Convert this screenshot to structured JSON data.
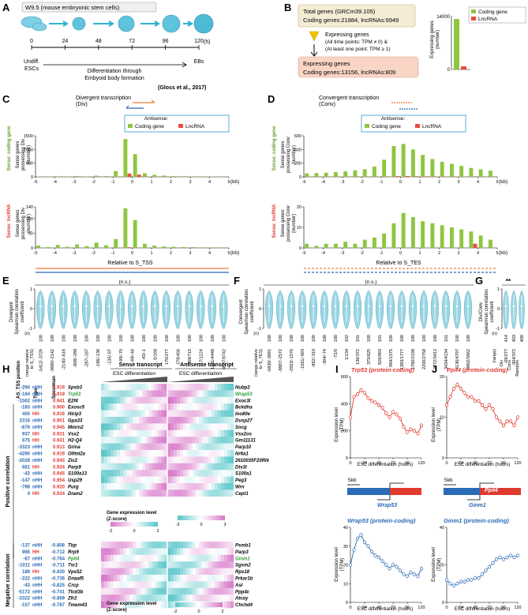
{
  "panel_letters": [
    "A",
    "B",
    "C",
    "D",
    "E",
    "F",
    "G",
    "H",
    "I",
    "J"
  ],
  "A": {
    "title": "W9.5 (mouse embryonic stem cells)",
    "ticks": [
      "0",
      "24",
      "48",
      "72",
      "96",
      "120"
    ],
    "unit": "(h)",
    "start_label": [
      "Undiff.",
      "ESCs"
    ],
    "mid_label": [
      "Differentiation through",
      "Embyoid body formation"
    ],
    "end_label": "EBs",
    "citation": "(Gloss et al., 2017)"
  },
  "B": {
    "total": [
      "Total genes (GRCm39.105)",
      "Coding genes:21884, lncRNAs:9949"
    ],
    "criteria": [
      "Expressing genes",
      "(All time points: TPM ≠ 0) &",
      "(At least one point: TPM ≥ 1)"
    ],
    "expressing": [
      "Expressing genes",
      "Coding genes:13156, lncRNAs:809"
    ],
    "ylabel": [
      "Expressing genes",
      "(number)"
    ],
    "yticks": [
      "14000",
      "0"
    ],
    "legend": [
      "Coding gene",
      "LncRNA"
    ],
    "colors": {
      "coding": "#8dc63f",
      "lnc": "#e84c3d"
    }
  },
  "chart_data": [
    {
      "panel": "B",
      "type": "bar",
      "categories": [
        "Coding gene",
        "LncRNA"
      ],
      "values": [
        13156,
        809
      ],
      "ylabel": "Expressing genes (number)",
      "ylim": [
        0,
        14000
      ]
    },
    {
      "panel": "C-top",
      "type": "bar",
      "title": "Divergent transcription (Div)",
      "ylabel": "Sense genes possessing Div (number)",
      "xlabel": "(kb)",
      "ylim": [
        0,
        1500
      ],
      "x": [
        -4.75,
        -4.25,
        -3.75,
        -3.25,
        -2.75,
        -2.25,
        -1.75,
        -1.25,
        -0.75,
        -0.25,
        0.25,
        0.75,
        1.25,
        1.75,
        2.25,
        2.75,
        3.25,
        3.75,
        4.25,
        4.75
      ],
      "series": [
        {
          "name": "Coding gene",
          "values": [
            14,
            8,
            20,
            12,
            28,
            16,
            42,
            28,
            210,
            1380,
            830,
            130,
            75,
            45,
            30,
            22,
            18,
            12,
            10,
            8
          ]
        },
        {
          "name": "LncRNA",
          "values": [
            2,
            1,
            2,
            1,
            3,
            2,
            3,
            2,
            8,
            120,
            80,
            6,
            4,
            3,
            2,
            2,
            1,
            1,
            1,
            1
          ]
        }
      ]
    },
    {
      "panel": "C-bottom",
      "type": "bar",
      "ylabel": "Sense genes possessing Div (number)",
      "xlabel": "Relative to S_TSS",
      "ylim": [
        0,
        140
      ],
      "x": [
        -4.75,
        -4.25,
        -3.75,
        -3.25,
        -2.75,
        -2.25,
        -1.75,
        -1.25,
        -0.75,
        -0.25,
        0.25,
        0.75,
        1.25,
        1.75,
        2.25,
        2.75,
        3.25,
        3.75,
        4.25,
        4.75
      ],
      "series": [
        {
          "name": "Coding gene",
          "values": [
            8,
            3,
            10,
            4,
            12,
            6,
            18,
            9,
            30,
            135,
            95,
            14,
            8,
            5,
            4,
            3,
            3,
            2,
            2,
            2
          ]
        },
        {
          "name": "LncRNA",
          "values": [
            0,
            0,
            0,
            0,
            0,
            0,
            0,
            0,
            1,
            2,
            0,
            0,
            0,
            0,
            0,
            0,
            0,
            0,
            0,
            0
          ]
        }
      ]
    },
    {
      "panel": "D-top",
      "type": "bar",
      "title": "Convergent transcription (Conv)",
      "ylabel": "Sense genes possessing Conv (number)",
      "xlabel": "(kb)",
      "ylim": [
        0,
        600
      ],
      "x": [
        -4.75,
        -4.25,
        -3.75,
        -3.25,
        -2.75,
        -2.25,
        -1.75,
        -1.25,
        -0.75,
        -0.25,
        0.25,
        0.75,
        1.25,
        1.75,
        2.25,
        2.75,
        3.25,
        3.75,
        4.25,
        4.75
      ],
      "series": [
        {
          "name": "Coding gene",
          "values": [
            50,
            55,
            60,
            70,
            80,
            95,
            110,
            150,
            250,
            450,
            480,
            400,
            320,
            260,
            220,
            190,
            160,
            130,
            110,
            90
          ]
        },
        {
          "name": "LncRNA",
          "values": [
            2,
            2,
            3,
            3,
            3,
            4,
            4,
            5,
            6,
            10,
            12,
            9,
            7,
            6,
            5,
            5,
            4,
            4,
            3,
            3
          ]
        }
      ]
    },
    {
      "panel": "D-bottom",
      "type": "bar",
      "ylabel": "Sense genes possessing Conv (number)",
      "xlabel": "Relative to S_TES",
      "ylim": [
        0,
        20
      ],
      "x": [
        -4.75,
        -4.25,
        -3.75,
        -3.25,
        -2.75,
        -2.25,
        -1.75,
        -1.25,
        -0.75,
        -0.25,
        0.25,
        0.75,
        1.25,
        1.75,
        2.25,
        2.75,
        3.25,
        3.75,
        4.25,
        4.75
      ],
      "series": [
        {
          "name": "Coding gene",
          "values": [
            2,
            1,
            2,
            2,
            3,
            2,
            4,
            5,
            7,
            12,
            17,
            15,
            13,
            12,
            11,
            10,
            9,
            8,
            6,
            4
          ]
        },
        {
          "name": "LncRNA",
          "values": [
            0,
            0,
            0,
            0,
            0,
            0,
            0,
            0,
            0,
            0,
            0,
            0,
            0,
            0,
            0,
            0,
            0,
            2,
            0,
            0
          ]
        }
      ]
    },
    {
      "panel": "I-top",
      "type": "line",
      "title": "Trp53 (protein-coding)",
      "ylabel": "Expression level (TPM)",
      "xlabel": "ESC differentiation (hours)",
      "ylim": [
        0,
        600
      ],
      "x": [
        0,
        6,
        12,
        18,
        24,
        30,
        36,
        42,
        48,
        54,
        60,
        66,
        72,
        78,
        84,
        90,
        96,
        102,
        108,
        114,
        120
      ],
      "values": [
        300,
        450,
        470,
        500,
        480,
        440,
        420,
        410,
        390,
        370,
        330,
        300,
        340,
        320,
        290,
        230,
        190,
        210,
        200,
        180,
        240
      ]
    },
    {
      "panel": "I-bottom",
      "type": "line",
      "title": "Wrap53 (protein-coding)",
      "ylabel": "Expression level (TPM)",
      "xlabel": "ESC differentiation (hours)",
      "ylim": [
        0,
        40
      ],
      "x": [
        0,
        6,
        12,
        18,
        24,
        30,
        36,
        42,
        48,
        54,
        60,
        66,
        72,
        78,
        84,
        90,
        96,
        102,
        108,
        114,
        120
      ],
      "values": [
        20,
        28,
        34,
        36,
        32,
        30,
        27,
        25,
        24,
        22,
        20,
        18,
        20,
        19,
        17,
        15,
        14,
        16,
        15,
        14,
        18
      ]
    },
    {
      "panel": "J-top",
      "type": "line",
      "title": "Ppil4 (protein-coding)",
      "ylabel": "Expression level (TPM)",
      "xlabel": "ESC differentiation (hours)",
      "ylim": [
        0,
        20
      ],
      "x": [
        0,
        6,
        12,
        18,
        24,
        30,
        36,
        42,
        48,
        54,
        60,
        66,
        72,
        78,
        84,
        90,
        96,
        102,
        108,
        114,
        120
      ],
      "values": [
        13,
        15,
        17,
        18,
        17,
        16,
        15,
        15,
        14,
        14,
        13,
        12,
        13,
        12,
        10,
        9,
        8,
        9,
        9,
        8,
        10
      ]
    },
    {
      "panel": "J-bottom",
      "type": "line",
      "title": "Ginm1 (protein-coding)",
      "ylabel": "Expression level (TPM)",
      "xlabel": "ESC differentiation (hours)",
      "ylim": [
        0,
        40
      ],
      "x": [
        0,
        6,
        12,
        18,
        24,
        30,
        36,
        42,
        48,
        54,
        60,
        66,
        72,
        78,
        84,
        90,
        96,
        102,
        108,
        114,
        120
      ],
      "values": [
        12,
        10,
        9,
        10,
        11,
        11,
        12,
        12,
        13,
        13,
        15,
        17,
        19,
        21,
        23,
        24,
        23,
        24,
        25,
        24,
        25
      ]
    }
  ],
  "C": {
    "title": [
      "Divergent transcription",
      "(Div)"
    ],
    "legend_title": "Antisense:",
    "legend": [
      "Coding gene",
      "LncRNA"
    ],
    "side_top": "Sense: coding gene",
    "side_bottom": "Sense: lncRNA",
    "ylabel_top": [
      "Sense genes",
      "possessing Div",
      "(number)"
    ],
    "ylabel_bottom": [
      "Sense genes",
      "possessing Div",
      "(number)"
    ],
    "yticks_top": [
      "1500",
      "1000",
      "500",
      "0"
    ],
    "yticks_bottom": [
      "140",
      "100",
      "50",
      "0"
    ],
    "xticks": [
      "-5",
      "-4",
      "-3",
      "-2",
      "-1",
      "0",
      "1",
      "2",
      "3",
      "4",
      "5"
    ],
    "unit": "(kb)",
    "xlabel": "Relative to S_TSS"
  },
  "D": {
    "title": [
      "Convergent transcription",
      "(Conv)"
    ],
    "legend_title": "Antisense:",
    "legend": [
      "Coding gene",
      "LncRNA"
    ],
    "side_top": "Sense: coding gene",
    "side_bottom": "Sense: lncRNA",
    "ylabel_top": [
      "Sense genes",
      "possessing Conv",
      "(number)"
    ],
    "ylabel_bottom": [
      "Sense genes",
      "possessing Conv",
      "(number)"
    ],
    "yticks_top": [
      "600",
      "400",
      "200",
      "0"
    ],
    "yticks_bottom": [
      "20",
      "10",
      "0"
    ],
    "xticks": [
      "-5",
      "-4",
      "-3",
      "-2",
      "-1",
      "0",
      "1",
      "2",
      "3",
      "4",
      "5"
    ],
    "unit": "(kb)",
    "xlabel": "Relative to S_TES"
  },
  "E": {
    "ns": "(n.s.)",
    "ylabel": [
      "Divergent",
      "Spearman correlation",
      "coefficient"
    ],
    "yticks": [
      "1",
      "0",
      "-1"
    ],
    "range_label": [
      "(range relative",
      "to S_TSS)"
    ],
    "n_label": "(n)",
    "ranges": [
      "-5412/-3729",
      "-3680/-2142",
      "-2140/-616",
      "-608/-288",
      "-287/-187",
      "-186/-136",
      "-135/-97",
      "-96/-70",
      "-69/-44",
      "-43/-1",
      "0/168",
      "170/277",
      "278/456",
      "458/715",
      "717/1224",
      "1231/4448",
      "4507/8742"
    ],
    "n": [
      "100",
      "100",
      "100",
      "100",
      "100",
      "100",
      "100",
      "100",
      "100",
      "100",
      "100",
      "100",
      "100",
      "100",
      "100",
      "100",
      "100"
    ]
  },
  "F": {
    "ns": "(n.s.)",
    "ylabel": [
      "Convergent",
      "Spearman correlation",
      "coefficient"
    ],
    "yticks": [
      "1",
      "0",
      "-1"
    ],
    "range_label": [
      "(range relative",
      "to S_TES)"
    ],
    "n_label": "(n)",
    "ranges": [
      "-5830/-3891",
      "-3887/-2572",
      "-2553/-1576",
      "-1561/-893",
      "-892/-310",
      "-304/-74",
      "-72/0",
      "1/134",
      "136/372",
      "375/625",
      "626/983",
      "984/1375",
      "1383/1777",
      "1780/2198",
      "2200/2758",
      "2772/3412",
      "3434/4134",
      "4136/4797",
      "4802/5662"
    ],
    "n": [
      "100",
      "100",
      "100",
      "100",
      "100",
      "100",
      "100",
      "102",
      "101",
      "100",
      "101",
      "100",
      "100",
      "100",
      "100",
      "100",
      "101",
      "100",
      "100"
    ]
  },
  "G": {
    "sig": "**",
    "ylabel": [
      "Div/Conv",
      "Spearman correlation",
      "coefficient"
    ],
    "yticks": [
      "1",
      "0",
      "-1"
    ],
    "range_label": "(range)",
    "n_label": "(n)",
    "groups": [
      "Div",
      "Conv",
      "Random"
    ],
    "ranges": [
      "-69/277",
      "-304/372",
      ""
    ],
    "n": [
      "414",
      "403",
      "400"
    ]
  },
  "H": {
    "col_headers": [
      "AS_TSS position",
      "Type",
      "Spearman"
    ],
    "positive_label": "Positive correlation",
    "negative_label": "Negative correlation",
    "sense_title": "Sense transcript",
    "antisense_title": "Antisense transcript",
    "esc_label": "ESC differentiation",
    "scale_label": [
      "Gene expression level",
      "(Z-score)"
    ],
    "scale_ticks": [
      "-2",
      "0",
      "2"
    ],
    "scale_ticks_b": [
      "-3",
      "0",
      "3"
    ],
    "positive": [
      {
        "pos": "-294",
        "type": "nHH",
        "sp": "0.919",
        "sense": "Spsb3",
        "anti": "Nubp2"
      },
      {
        "pos": "-164",
        "type": "nHH",
        "sp": "0.919",
        "sense": "Trp53",
        "anti": "Wrap53",
        "hl": true
      },
      {
        "pos": "-1562",
        "type": "nHH",
        "sp": "0.941",
        "sense": "E2f4",
        "anti": "Exoc3l"
      },
      {
        "pos": "-183",
        "type": "nHH",
        "sp": "0.900",
        "sense": "Exosc5",
        "anti": "Bckdha"
      },
      {
        "pos": "405",
        "type": "HH",
        "sp": "0.916",
        "sense": "Hirip3",
        "anti": "Ino80e"
      },
      {
        "pos": "2316",
        "type": "nHH",
        "sp": "0.901",
        "sense": "Gpa33",
        "anti": "Dusp27"
      },
      {
        "pos": "-676",
        "type": "nHH",
        "sp": "0.945",
        "sense": "Mmrn2",
        "anti": "Sncg"
      },
      {
        "pos": "937",
        "type": "HH",
        "sp": "0.931",
        "sense": "Vsx2",
        "anti": "Vsx2os"
      },
      {
        "pos": "675",
        "type": "HH",
        "sp": "0.941",
        "sense": "H2-Q4",
        "anti": "Gm11131"
      },
      {
        "pos": "-3323",
        "type": "nHH",
        "sp": "0.913",
        "sense": "Grina",
        "anti": "Parp10"
      },
      {
        "pos": "-4290",
        "type": "nHH",
        "sp": "0.919",
        "sense": "Olfml2a",
        "anti": "Nr6a1"
      },
      {
        "pos": "-2028",
        "type": "nHH",
        "sp": "0.943",
        "sense": "Zic2",
        "anti": "2610035F20Rik"
      },
      {
        "pos": "681",
        "type": "HH",
        "sp": "0.924",
        "sense": "Parp9",
        "anti": "Dtx3l"
      },
      {
        "pos": "-43",
        "type": "nHH",
        "sp": "0.945",
        "sense": "S100a13",
        "anti": "S100a1"
      },
      {
        "pos": "-147",
        "type": "nHH",
        "sp": "0.954",
        "sense": "Usp29",
        "anti": "Peg3"
      },
      {
        "pos": "-798",
        "type": "nHH",
        "sp": "0.920",
        "sense": "Purg",
        "anti": "Wrn"
      },
      {
        "pos": "4",
        "type": "HH",
        "sp": "0.924",
        "sense": "Dram2",
        "anti": "Cept1"
      }
    ],
    "negative": [
      {
        "pos": "-137",
        "type": "nHH",
        "sp": "-0.808",
        "sense": "Tbp",
        "anti": "Psmb1"
      },
      {
        "pos": "986",
        "type": "HH",
        "sp": "-0.712",
        "sense": "Rrp9",
        "anti": "Parp3"
      },
      {
        "pos": "-67",
        "type": "nHH",
        "sp": "-0.764",
        "sense": "Ppil4",
        "anti": "Ginm1",
        "hl": true
      },
      {
        "pos": "-1011",
        "type": "nHH",
        "sp": "-0.711",
        "sense": "Tsr1",
        "anti": "Sgsm2"
      },
      {
        "pos": "189",
        "type": "HH",
        "sp": "-0.830",
        "sense": "Vps52",
        "anti": "Rps18"
      },
      {
        "pos": "-222",
        "type": "nHH",
        "sp": "-0.736",
        "sense": "Dnaaf5",
        "anti": "Prkar1b"
      },
      {
        "pos": "-43",
        "type": "nHH",
        "sp": "-0.825",
        "sense": "Crcp",
        "anti": "Asl"
      },
      {
        "pos": "-5172",
        "type": "nHH",
        "sp": "-0.741",
        "sense": "Tlcd3b",
        "anti": "Ppp4c"
      },
      {
        "pos": "-2322",
        "type": "nHH",
        "sp": "-0.869",
        "sense": "Zfr2",
        "anti": "Atcay"
      },
      {
        "pos": "-157",
        "type": "nHH",
        "sp": "-0.767",
        "sense": "Tmem43",
        "anti": "Chchd4"
      }
    ]
  },
  "I": {
    "title_top": "Trp53 (protein-coding)",
    "title_bottom": "Wrap53 (protein-coding)",
    "ylabel": [
      "Expression level",
      "(TPM)"
    ],
    "yticks_top": [
      "600",
      "400",
      "200",
      "0"
    ],
    "yticks_bottom": [
      "40",
      "30",
      "20",
      "10",
      "0"
    ],
    "xticks": [
      "0",
      "24",
      "48",
      "72",
      "96",
      "120"
    ],
    "xlabel": "ESC differentiation (hours)",
    "scale": "5kb",
    "gene_sense": "Trp53",
    "gene_anti": "Wrap53"
  },
  "J": {
    "title_top": "Ppil4 (protein-coding)",
    "title_bottom": "Ginm1 (protein-coding)",
    "ylabel": [
      "Expression level",
      "(TPM)"
    ],
    "yticks_top": [
      "20",
      "10",
      "0"
    ],
    "yticks_bottom": [
      "40",
      "20",
      "0"
    ],
    "xticks": [
      "0",
      "24",
      "48",
      "72",
      "96",
      "120"
    ],
    "xlabel": "ESC differentiation (hours)",
    "scale": "5kb",
    "gene_sense": "Ppil4",
    "gene_anti": "Ginm1"
  },
  "colors": {
    "red": "#e03a2f",
    "blue": "#2a6bb5",
    "green": "#8dc63f",
    "lnc": "#e84c3d",
    "orange": "#f07a3a",
    "teal": "#57c5c9",
    "pink": "#d876c8",
    "violin": "#9ad6e2"
  }
}
